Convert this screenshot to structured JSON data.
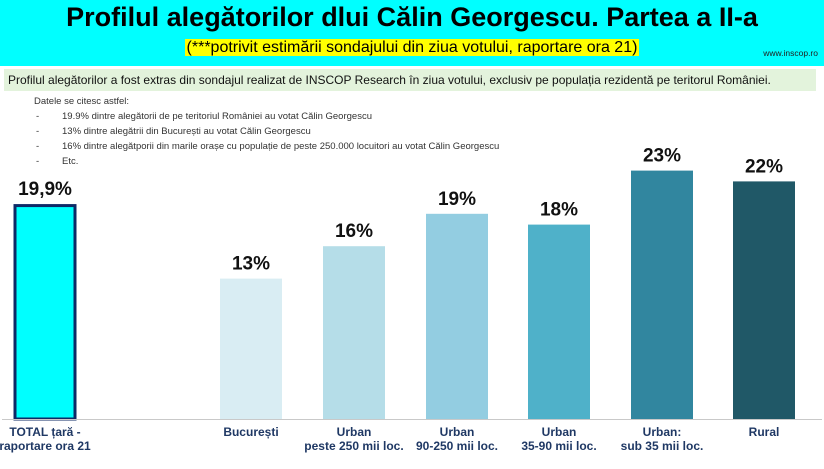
{
  "header": {
    "title": "Profilul alegătorilor dlui Călin Georgescu. Partea a II-a",
    "subtitle": "(***potrivit estimării sondajului din ziua votului, raportare ora 21)",
    "source": "www.inscop.ro"
  },
  "intro": "Profilul alegătorilor a fost extras din sondajul realizat de INSCOP Research în ziua votului, exclusiv pe populația rezidentă pe teritorul României.",
  "notes": {
    "heading": "Datele se citesc astfel:",
    "items": [
      "19.9% dintre alegătorii de pe teritoriul României au votat Călin Georgescu",
      "13% dintre alegătrii din București au votat Călin Georgescu",
      "16% dintre alegătporii din marile orașe cu populație de peste 250.000 locuitori au votat Călin Georgescu",
      "Etc."
    ]
  },
  "colors": {
    "header_bg": "#00ffff",
    "subtitle_highlight": "#ffff00",
    "intro_bg": "#e3f3dc",
    "total_bar": "#00ffff",
    "total_border": "#0d2a66"
  },
  "chart_data": {
    "type": "bar",
    "categories": [
      [
        "TOTAL țară -",
        "raportare ora 21"
      ],
      [
        "București"
      ],
      [
        "Urban",
        "peste 250 mii loc."
      ],
      [
        "Urban",
        "90-250 mii loc."
      ],
      [
        "Urban",
        "35-90 mii loc."
      ],
      [
        "Urban:",
        "sub 35 mii loc."
      ],
      [
        "Rural"
      ]
    ],
    "values": [
      19.9,
      13,
      16,
      19,
      18,
      23,
      22
    ],
    "labels": [
      "19,9%",
      "13%",
      "16%",
      "19%",
      "18%",
      "23%",
      "22%"
    ],
    "bar_colors": [
      "#00ffff",
      "#d9edf3",
      "#b5dde8",
      "#93cde1",
      "#4fb1c9",
      "#31869f",
      "#205867"
    ],
    "ylim": [
      0,
      25
    ],
    "grid": false
  }
}
